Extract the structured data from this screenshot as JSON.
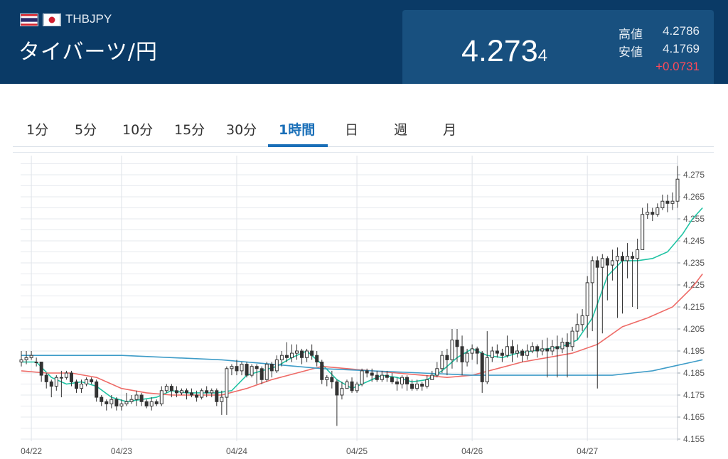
{
  "header": {
    "pair_code": "THBJPY",
    "pair_name": "タイバーツ/円",
    "price_main": "4.273",
    "price_sub": "4",
    "high_label": "高値",
    "high_value": "4.2786",
    "low_label": "安値",
    "low_value": "4.1769",
    "change": "+0.0731",
    "flags": [
      "thailand-flag",
      "japan-flag"
    ]
  },
  "tabs": [
    {
      "label": "1分",
      "active": false
    },
    {
      "label": "5分",
      "active": false
    },
    {
      "label": "10分",
      "active": false
    },
    {
      "label": "15分",
      "active": false
    },
    {
      "label": "30分",
      "active": false
    },
    {
      "label": "1時間",
      "active": true
    },
    {
      "label": "日",
      "active": false
    },
    {
      "label": "週",
      "active": false
    },
    {
      "label": "月",
      "active": false
    }
  ],
  "colors": {
    "header_bg": "#0a3a66",
    "quote_panel": "#18507f",
    "change_positive": "#ff4a5a",
    "active_tab": "#1a6fb8",
    "ma_short": "#1fc3a3",
    "ma_mid": "#ee6b67",
    "ma_long": "#3e9cc8",
    "candle": "#333333"
  },
  "chart_data": {
    "type": "candlestick",
    "title": "",
    "xlabel": "",
    "ylabel": "",
    "ylim": [
      4.155,
      4.28
    ],
    "y_ticks": [
      "4.155",
      "4.165",
      "4.175",
      "4.185",
      "4.195",
      "4.205",
      "4.215",
      "4.225",
      "4.235",
      "4.245",
      "4.255",
      "4.265",
      "4.275"
    ],
    "x_ticks": [
      {
        "label": "04/22",
        "index": 2
      },
      {
        "label": "04/23",
        "index": 20
      },
      {
        "label": "04/24",
        "index": 43
      },
      {
        "label": "04/25",
        "index": 67
      },
      {
        "label": "04/26",
        "index": 90
      },
      {
        "label": "04/27",
        "index": 113
      }
    ],
    "grid": true,
    "candles": [
      [
        4.19,
        4.191,
        4.195,
        4.188
      ],
      [
        4.191,
        4.192,
        4.195,
        4.189
      ],
      [
        4.192,
        4.193,
        4.195,
        4.191
      ],
      [
        4.19,
        4.19,
        4.192,
        4.188
      ],
      [
        4.19,
        4.184,
        4.19,
        4.181
      ],
      [
        4.184,
        4.181,
        4.185,
        4.178
      ],
      [
        4.181,
        4.179,
        4.182,
        4.174
      ],
      [
        4.179,
        4.183,
        4.184,
        4.177
      ],
      [
        4.183,
        4.183,
        4.186,
        4.174
      ],
      [
        4.183,
        4.185,
        4.186,
        4.182
      ],
      [
        4.185,
        4.181,
        4.186,
        4.179
      ],
      [
        4.181,
        4.178,
        4.182,
        4.176
      ],
      [
        4.178,
        4.18,
        4.182,
        4.176
      ],
      [
        4.18,
        4.182,
        4.183,
        4.179
      ],
      [
        4.182,
        4.181,
        4.183,
        4.18
      ],
      [
        4.181,
        4.174,
        4.182,
        4.172
      ],
      [
        4.174,
        4.172,
        4.175,
        4.17
      ],
      [
        4.172,
        4.171,
        4.173,
        4.168
      ],
      [
        4.171,
        4.173,
        4.175,
        4.169
      ],
      [
        4.173,
        4.17,
        4.174,
        4.168
      ],
      [
        4.17,
        4.171,
        4.173,
        4.168
      ],
      [
        4.171,
        4.172,
        4.176,
        4.17
      ],
      [
        4.172,
        4.173,
        4.175,
        4.171
      ],
      [
        4.173,
        4.175,
        4.177,
        4.17
      ],
      [
        4.175,
        4.172,
        4.176,
        4.17
      ],
      [
        4.172,
        4.17,
        4.173,
        4.169
      ],
      [
        4.17,
        4.172,
        4.174,
        4.168
      ],
      [
        4.172,
        4.171,
        4.173,
        4.17
      ],
      [
        4.171,
        4.177,
        4.179,
        4.17
      ],
      [
        4.177,
        4.179,
        4.18,
        4.176
      ],
      [
        4.179,
        4.177,
        4.18,
        4.174
      ],
      [
        4.177,
        4.176,
        4.179,
        4.174
      ],
      [
        4.176,
        4.177,
        4.178,
        4.175
      ],
      [
        4.177,
        4.176,
        4.178,
        4.173
      ],
      [
        4.176,
        4.175,
        4.178,
        4.174
      ],
      [
        4.175,
        4.174,
        4.177,
        4.172
      ],
      [
        4.174,
        4.177,
        4.178,
        4.173
      ],
      [
        4.177,
        4.176,
        4.179,
        4.174
      ],
      [
        4.176,
        4.177,
        4.178,
        4.174
      ],
      [
        4.177,
        4.172,
        4.178,
        4.17
      ],
      [
        4.172,
        4.174,
        4.177,
        4.166
      ],
      [
        4.174,
        4.187,
        4.188,
        4.166
      ],
      [
        4.187,
        4.188,
        4.189,
        4.184
      ],
      [
        4.188,
        4.186,
        4.191,
        4.184
      ],
      [
        4.186,
        4.189,
        4.19,
        4.184
      ],
      [
        4.189,
        4.184,
        4.19,
        4.183
      ],
      [
        4.184,
        4.188,
        4.189,
        4.183
      ],
      [
        4.188,
        4.187,
        4.189,
        4.18
      ],
      [
        4.187,
        4.182,
        4.188,
        4.18
      ],
      [
        4.182,
        4.189,
        4.19,
        4.181
      ],
      [
        4.189,
        4.186,
        4.19,
        4.183
      ],
      [
        4.186,
        4.191,
        4.193,
        4.185
      ],
      [
        4.191,
        4.193,
        4.195,
        4.188
      ],
      [
        4.193,
        4.192,
        4.199,
        4.19
      ],
      [
        4.192,
        4.194,
        4.198,
        4.19
      ],
      [
        4.194,
        4.195,
        4.198,
        4.191
      ],
      [
        4.195,
        4.192,
        4.196,
        4.189
      ],
      [
        4.192,
        4.195,
        4.196,
        4.19
      ],
      [
        4.195,
        4.193,
        4.198,
        4.191
      ],
      [
        4.193,
        4.19,
        4.195,
        4.188
      ],
      [
        4.19,
        4.182,
        4.191,
        4.18
      ],
      [
        4.182,
        4.183,
        4.184,
        4.179
      ],
      [
        4.183,
        4.181,
        4.186,
        4.178
      ],
      [
        4.181,
        4.175,
        4.182,
        4.161
      ],
      [
        4.175,
        4.178,
        4.181,
        4.173
      ],
      [
        4.178,
        4.181,
        4.182,
        4.178
      ],
      [
        4.181,
        4.177,
        4.183,
        4.176
      ],
      [
        4.177,
        4.18,
        4.181,
        4.176
      ],
      [
        4.18,
        4.186,
        4.187,
        4.179
      ],
      [
        4.186,
        4.185,
        4.187,
        4.183
      ],
      [
        4.185,
        4.184,
        4.187,
        4.181
      ],
      [
        4.184,
        4.182,
        4.186,
        4.181
      ],
      [
        4.182,
        4.184,
        4.186,
        4.181
      ],
      [
        4.184,
        4.183,
        4.186,
        4.181
      ],
      [
        4.183,
        4.181,
        4.185,
        4.18
      ],
      [
        4.181,
        4.18,
        4.183,
        4.177
      ],
      [
        4.18,
        4.183,
        4.184,
        4.178
      ],
      [
        4.183,
        4.18,
        4.184,
        4.177
      ],
      [
        4.18,
        4.178,
        4.182,
        4.177
      ],
      [
        4.178,
        4.18,
        4.182,
        4.177
      ],
      [
        4.18,
        4.179,
        4.181,
        4.177
      ],
      [
        4.179,
        4.182,
        4.184,
        4.178
      ],
      [
        4.182,
        4.184,
        4.186,
        4.182
      ],
      [
        4.184,
        4.187,
        4.19,
        4.183
      ],
      [
        4.187,
        4.193,
        4.195,
        4.185
      ],
      [
        4.193,
        4.191,
        4.196,
        4.184
      ],
      [
        4.191,
        4.2,
        4.205,
        4.187
      ],
      [
        4.2,
        4.197,
        4.205,
        4.19
      ],
      [
        4.197,
        4.19,
        4.202,
        4.184
      ],
      [
        4.19,
        4.194,
        4.196,
        4.188
      ],
      [
        4.194,
        4.196,
        4.198,
        4.191
      ],
      [
        4.196,
        4.194,
        4.197,
        4.189
      ],
      [
        4.194,
        4.181,
        4.195,
        4.176
      ],
      [
        4.181,
        4.192,
        4.204,
        4.18
      ],
      [
        4.192,
        4.195,
        4.197,
        4.19
      ],
      [
        4.195,
        4.194,
        4.198,
        4.192
      ],
      [
        4.194,
        4.193,
        4.196,
        4.19
      ],
      [
        4.193,
        4.197,
        4.202,
        4.192
      ],
      [
        4.197,
        4.194,
        4.2,
        4.19
      ],
      [
        4.194,
        4.195,
        4.198,
        4.192
      ],
      [
        4.195,
        4.193,
        4.196,
        4.19
      ],
      [
        4.193,
        4.195,
        4.198,
        4.191
      ],
      [
        4.195,
        4.197,
        4.199,
        4.194
      ],
      [
        4.197,
        4.195,
        4.198,
        4.192
      ],
      [
        4.195,
        4.196,
        4.2,
        4.193
      ],
      [
        4.196,
        4.195,
        4.201,
        4.183
      ],
      [
        4.195,
        4.197,
        4.2,
        4.193
      ],
      [
        4.197,
        4.196,
        4.202,
        4.183
      ],
      [
        4.196,
        4.199,
        4.201,
        4.194
      ],
      [
        4.199,
        4.197,
        4.203,
        4.183
      ],
      [
        4.197,
        4.204,
        4.206,
        4.195
      ],
      [
        4.204,
        4.207,
        4.212,
        4.2
      ],
      [
        4.207,
        4.211,
        4.214,
        4.204
      ],
      [
        4.211,
        4.226,
        4.229,
        4.201
      ],
      [
        4.226,
        4.236,
        4.238,
        4.204
      ],
      [
        4.236,
        4.233,
        4.238,
        4.178
      ],
      [
        4.233,
        4.237,
        4.239,
        4.203
      ],
      [
        4.237,
        4.234,
        4.238,
        4.218
      ],
      [
        4.234,
        4.236,
        4.241,
        4.227
      ],
      [
        4.236,
        4.238,
        4.242,
        4.21
      ],
      [
        4.238,
        4.236,
        4.24,
        4.212
      ],
      [
        4.236,
        4.238,
        4.244,
        4.228
      ],
      [
        4.238,
        4.237,
        4.24,
        4.215
      ],
      [
        4.237,
        4.241,
        4.246,
        4.214
      ],
      [
        4.241,
        4.257,
        4.26,
        4.248
      ],
      [
        4.257,
        4.258,
        4.262,
        4.255
      ],
      [
        4.258,
        4.257,
        4.26,
        4.254
      ],
      [
        4.257,
        4.26,
        4.262,
        4.256
      ],
      [
        4.26,
        4.263,
        4.266,
        4.259
      ],
      [
        4.263,
        4.262,
        4.266,
        4.258
      ],
      [
        4.262,
        4.263,
        4.267,
        4.259
      ],
      [
        4.263,
        4.273,
        4.279,
        4.26
      ]
    ],
    "series": [
      {
        "name": "",
        "color": "#1fc3a3",
        "values": [
          [
            0,
            4.19
          ],
          [
            3,
            4.19
          ],
          [
            6,
            4.183
          ],
          [
            9,
            4.18
          ],
          [
            12,
            4.181
          ],
          [
            15,
            4.179
          ],
          [
            18,
            4.174
          ],
          [
            21,
            4.172
          ],
          [
            24,
            4.173
          ],
          [
            27,
            4.174
          ],
          [
            30,
            4.177
          ],
          [
            33,
            4.176
          ],
          [
            36,
            4.176
          ],
          [
            39,
            4.176
          ],
          [
            42,
            4.177
          ],
          [
            45,
            4.184
          ],
          [
            48,
            4.186
          ],
          [
            51,
            4.188
          ],
          [
            54,
            4.192
          ],
          [
            57,
            4.195
          ],
          [
            60,
            4.189
          ],
          [
            63,
            4.182
          ],
          [
            66,
            4.178
          ],
          [
            69,
            4.181
          ],
          [
            72,
            4.184
          ],
          [
            75,
            4.183
          ],
          [
            78,
            4.181
          ],
          [
            81,
            4.182
          ],
          [
            84,
            4.186
          ],
          [
            87,
            4.192
          ],
          [
            90,
            4.196
          ],
          [
            93,
            4.193
          ],
          [
            96,
            4.192
          ],
          [
            99,
            4.194
          ],
          [
            102,
            4.195
          ],
          [
            105,
            4.196
          ],
          [
            108,
            4.197
          ],
          [
            111,
            4.2
          ],
          [
            114,
            4.21
          ],
          [
            117,
            4.229
          ],
          [
            120,
            4.236
          ],
          [
            123,
            4.236
          ],
          [
            126,
            4.237
          ],
          [
            129,
            4.24
          ],
          [
            132,
            4.248
          ],
          [
            134,
            4.255
          ],
          [
            136,
            4.26
          ]
        ]
      },
      {
        "name": "",
        "color": "#ee6b67",
        "values": [
          [
            0,
            4.186
          ],
          [
            5,
            4.185
          ],
          [
            10,
            4.185
          ],
          [
            15,
            4.183
          ],
          [
            20,
            4.178
          ],
          [
            25,
            4.176
          ],
          [
            30,
            4.175
          ],
          [
            35,
            4.175
          ],
          [
            40,
            4.175
          ],
          [
            45,
            4.178
          ],
          [
            50,
            4.182
          ],
          [
            55,
            4.185
          ],
          [
            60,
            4.188
          ],
          [
            65,
            4.187
          ],
          [
            70,
            4.186
          ],
          [
            75,
            4.185
          ],
          [
            80,
            4.184
          ],
          [
            85,
            4.183
          ],
          [
            90,
            4.184
          ],
          [
            95,
            4.187
          ],
          [
            100,
            4.19
          ],
          [
            105,
            4.192
          ],
          [
            110,
            4.194
          ],
          [
            115,
            4.198
          ],
          [
            120,
            4.206
          ],
          [
            125,
            4.21
          ],
          [
            130,
            4.215
          ],
          [
            134,
            4.224
          ],
          [
            136,
            4.23
          ]
        ]
      },
      {
        "name": "",
        "color": "#3e9cc8",
        "values": [
          [
            0,
            4.193
          ],
          [
            10,
            4.193
          ],
          [
            20,
            4.193
          ],
          [
            30,
            4.192
          ],
          [
            40,
            4.191
          ],
          [
            50,
            4.189
          ],
          [
            60,
            4.187
          ],
          [
            70,
            4.186
          ],
          [
            80,
            4.185
          ],
          [
            90,
            4.184
          ],
          [
            100,
            4.184
          ],
          [
            110,
            4.184
          ],
          [
            118,
            4.184
          ],
          [
            122,
            4.185
          ],
          [
            126,
            4.186
          ],
          [
            130,
            4.188
          ],
          [
            134,
            4.19
          ],
          [
            136,
            4.191
          ]
        ]
      }
    ]
  }
}
